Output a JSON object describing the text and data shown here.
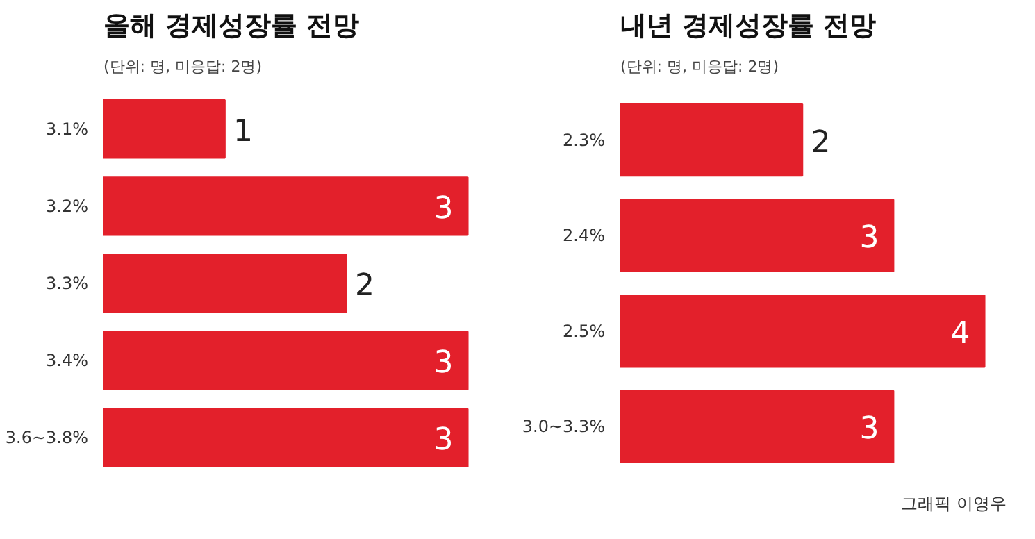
{
  "chart_data": [
    {
      "type": "bar",
      "orientation": "horizontal",
      "title": "올해 경제성장률 전망",
      "subtitle": "(단위: 명, 미응답: 2명)",
      "categories": [
        "3.1%",
        "3.2%",
        "3.3%",
        "3.4%",
        "3.6~3.8%"
      ],
      "values": [
        1,
        3,
        2,
        3,
        3
      ],
      "color": "#e3202b",
      "data_labels": true
    },
    {
      "type": "bar",
      "orientation": "horizontal",
      "title": "내년 경제성장률 전망",
      "subtitle": "(단위: 명, 미응답: 2명)",
      "categories": [
        "2.3%",
        "2.4%",
        "2.5%",
        "3.0~3.3%"
      ],
      "values": [
        2,
        3,
        4,
        3
      ],
      "color": "#e3202b",
      "data_labels": true,
      "annotations": [
        "그래픽 이영우"
      ]
    }
  ]
}
